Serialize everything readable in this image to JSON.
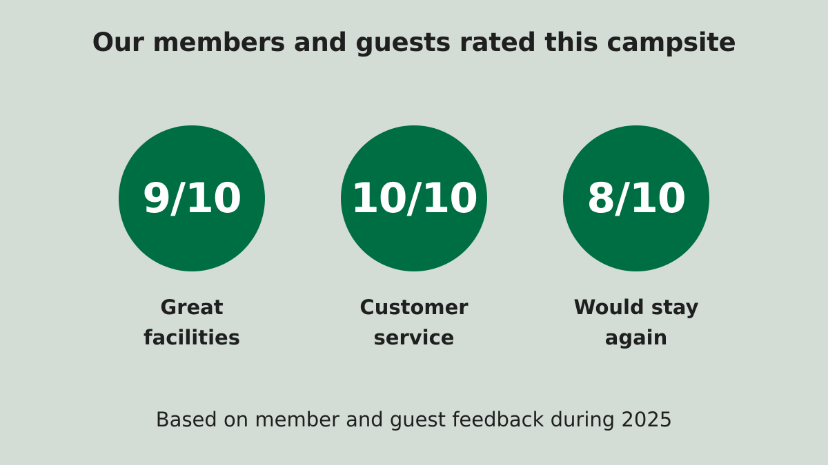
{
  "title": "Our members and guests rated this campsite",
  "ratings": [
    {
      "score": "9/10",
      "label_line1": "Great",
      "label_line2": "facilities"
    },
    {
      "score": "10/10",
      "label_line1": "Customer",
      "label_line2": "service"
    },
    {
      "score": "8/10",
      "label_line1": "Would stay",
      "label_line2": "again"
    }
  ],
  "footer": "Based on member and guest feedback during 2025",
  "colors": {
    "background": "#d3ddd5",
    "accent": "#006e43",
    "text": "#1f1f1f"
  }
}
